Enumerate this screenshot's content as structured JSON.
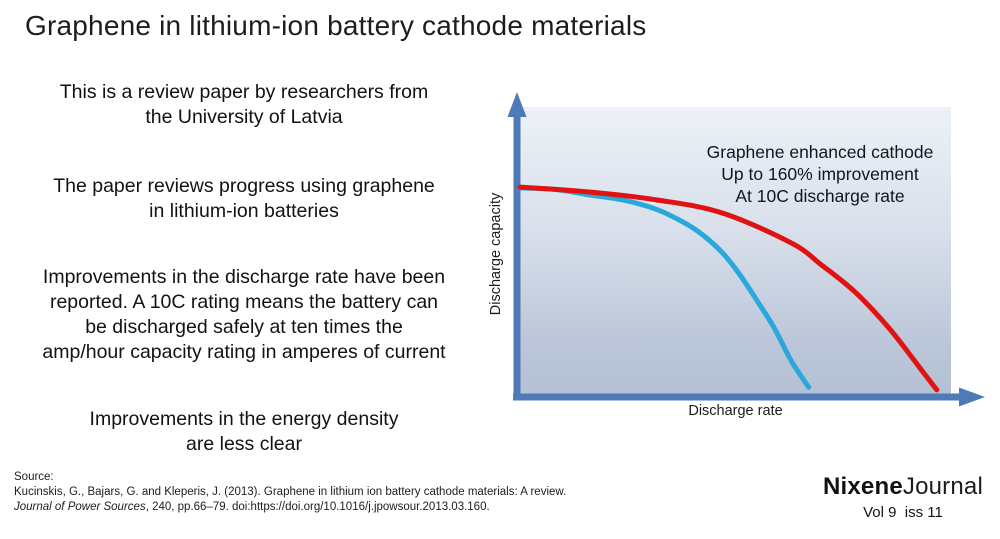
{
  "slide": {
    "title": "Graphene in lithium-ion battery cathode materials",
    "bullets": [
      "This is a review paper by researchers from\nthe University of Latvia",
      "The paper reviews progress using graphene\nin lithium-ion batteries",
      "Improvements in the discharge rate have been\nreported. A 10C rating means the battery can\nbe discharged safely at ten times the\namp/hour capacity rating in amperes of current",
      "Improvements in the energy density\nare less clear"
    ]
  },
  "chart": {
    "y_axis_label": "Discharge capacity",
    "x_axis_label": "Discharge rate",
    "annotation": "Graphene enhanced cathode\nUp to 160% improvement\nAt 10C discharge rate",
    "axis_color": "#4e7ab8",
    "plot_gradient_top": "#edf1f7",
    "plot_gradient_bottom": "#b4c0d3"
  },
  "chart_data": {
    "type": "line",
    "title": "",
    "xlabel": "Discharge rate",
    "ylabel": "Discharge capacity",
    "annotation": "Graphene enhanced cathode\nUp to 160% improvement\nAt 10C discharge rate",
    "axes": "qualitative arrow axes, no tick labels, no gridlines, no legend",
    "units": "points are percent of axis span [x%, y%]",
    "series": [
      {
        "name": "blue curve (baseline cathode)",
        "color": "#29a8dc",
        "points_percent": [
          [
            0,
            72
          ],
          [
            8,
            71.5
          ],
          [
            16,
            69.6
          ],
          [
            24,
            67.8
          ],
          [
            32,
            64.4
          ],
          [
            39,
            59.2
          ],
          [
            43,
            55
          ],
          [
            47,
            49.5
          ],
          [
            51,
            42
          ],
          [
            55,
            33
          ],
          [
            59,
            23.5
          ],
          [
            63,
            12
          ],
          [
            67,
            3
          ]
        ]
      },
      {
        "name": "red curve (graphene enhanced cathode)",
        "color": "#e01212",
        "points_percent": [
          [
            0,
            72.3
          ],
          [
            16,
            70.6
          ],
          [
            32,
            67.8
          ],
          [
            47,
            63.3
          ],
          [
            63,
            52.9
          ],
          [
            70,
            45.3
          ],
          [
            78,
            35.6
          ],
          [
            86,
            22.8
          ],
          [
            93.5,
            8.3
          ],
          [
            96.7,
            2.1
          ]
        ]
      }
    ]
  },
  "footer": {
    "source_label": "Source:",
    "citation_part1": "Kucinskis, G., Bajars, G. and Kleperis, J. (2013). Graphene in lithium ion battery cathode materials: A review. ",
    "citation_italic": "Journal of Power Sources",
    "citation_part2": ", 240, pp.66–79. doi:https://doi.org/10.1016/j.jpowsour.2013.03.160.",
    "brand_bold": "Nixene",
    "brand_light": "Journal",
    "volume": "Vol 9  iss 11"
  }
}
